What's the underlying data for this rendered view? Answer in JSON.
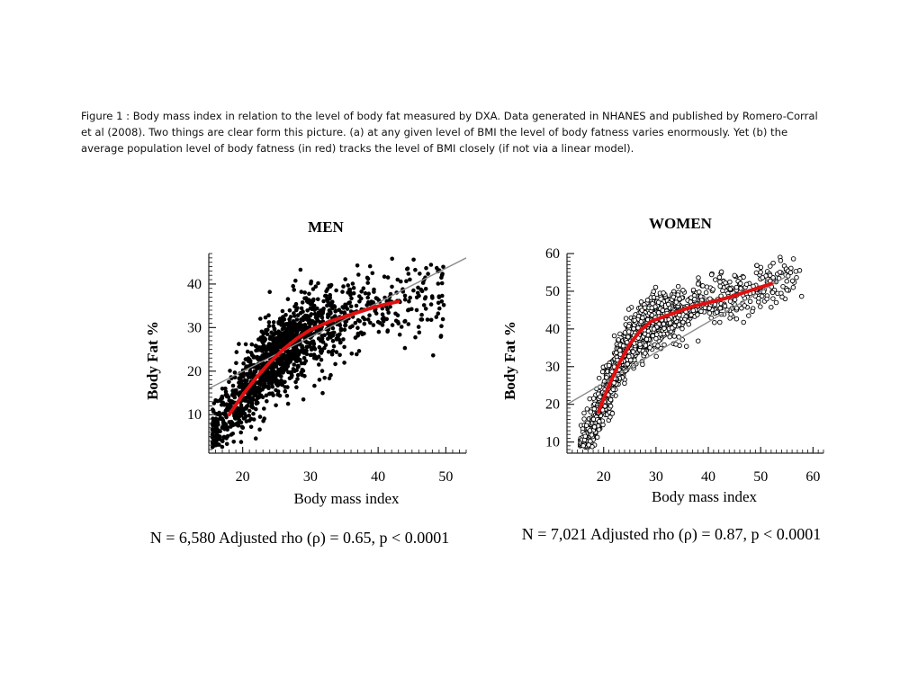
{
  "caption": "Figure 1 : Body mass index in relation to the level of body fat measured by DXA. Data generated in NHANES and published by Romero-Corral et al (2008). Two things are clear form this picture. (a) at any given level of BMI the level of body fatness varies enormously. Yet (b) the average population level of body fatness (in red) tracks the level of BMI closely (if not via a linear model).",
  "colors": {
    "points": "#000000",
    "fit": "#e01010",
    "reference": "#8c8c8c",
    "axis": "#222222"
  },
  "chart_data": [
    {
      "type": "scatter",
      "title": "MEN",
      "xlabel": "Body mass index",
      "ylabel": "Body Fat %",
      "xlim": [
        15,
        53
      ],
      "ylim": [
        2,
        47
      ],
      "xticks": [
        20,
        30,
        40,
        50
      ],
      "yticks": [
        10,
        20,
        30,
        40
      ],
      "marker": "filled",
      "cloud": {
        "x_min": 15.5,
        "x_max": 50,
        "curve_shape": "log",
        "curve_x0": 18,
        "curve_x1": 43,
        "curve_y0": 10,
        "curve_y1": 36,
        "spread": 4.5,
        "n_points": 1500
      },
      "fit_curve": {
        "name": "average body fat",
        "x": [
          18,
          20,
          22,
          24,
          26,
          28,
          30,
          33,
          36,
          39,
          41,
          43
        ],
        "y": [
          10,
          14.5,
          18.5,
          22,
          25,
          27.5,
          29.5,
          31.5,
          33,
          34.5,
          35.3,
          36
        ]
      },
      "reference_line": {
        "x": [
          15,
          53
        ],
        "y": [
          16,
          46
        ]
      },
      "footer": "N = 6,580 Adjusted rho (ρ) = 0.65, p < 0.0001"
    },
    {
      "type": "scatter",
      "title": "WOMEN",
      "xlabel": "Body mass index",
      "ylabel": "Body Fat %",
      "xlim": [
        13,
        62
      ],
      "ylim": [
        8,
        60
      ],
      "xticks": [
        20,
        30,
        40,
        50,
        60
      ],
      "yticks": [
        10,
        20,
        30,
        40,
        50,
        60
      ],
      "marker": "open",
      "cloud": {
        "x_min": 15.5,
        "x_max": 58,
        "curve_shape": "bend",
        "curve_x0": 19,
        "curve_x1": 52,
        "curve_y0": 18,
        "curve_y1": 52,
        "spread": 3.5,
        "n_points": 1500
      },
      "fit_curve": {
        "name": "average body fat",
        "x": [
          19,
          21,
          23,
          25,
          27,
          29,
          31,
          34,
          37,
          40,
          43,
          46,
          49,
          52
        ],
        "y": [
          18,
          25,
          31,
          36,
          39.5,
          42,
          43,
          44.5,
          46,
          47,
          48,
          49.3,
          50.6,
          52
        ]
      },
      "reference_line": {
        "x": [
          13,
          55
        ],
        "y": [
          20,
          54
        ]
      },
      "footer": "N = 7,021 Adjusted rho (ρ) = 0.87, p < 0.0001"
    }
  ]
}
